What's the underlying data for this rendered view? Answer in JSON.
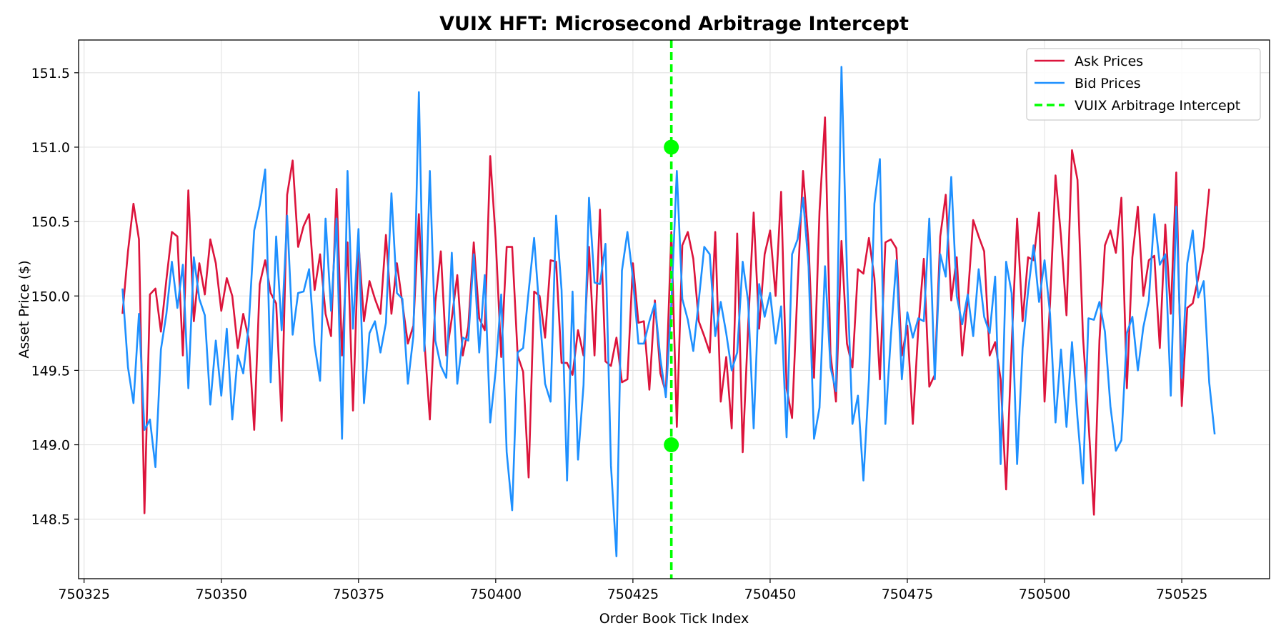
{
  "chart_data": {
    "type": "line",
    "title": "VUIX HFT: Microsecond Arbitrage Intercept",
    "xlabel": "Order Book Tick Index",
    "ylabel": "Asset Price ($)",
    "xlim": [
      750324,
      750541
    ],
    "ylim": [
      148.1,
      151.72
    ],
    "xticks": [
      750325,
      750350,
      750375,
      750400,
      750425,
      750450,
      750475,
      750500,
      750525
    ],
    "yticks": [
      148.5,
      149.0,
      149.5,
      150.0,
      150.5,
      151.0,
      151.5
    ],
    "ytick_labels": [
      "148.5",
      "149.0",
      "149.5",
      "150.0",
      "150.5",
      "151.0",
      "151.5"
    ],
    "grid": true,
    "legend_position": "top-right",
    "x_start": 750332,
    "x_end": 750531,
    "series": [
      {
        "name": "Ask Prices",
        "color": "#dc143c",
        "values": [
          149.88,
          150.3,
          150.62,
          150.38,
          148.54,
          150.01,
          150.05,
          149.76,
          150.11,
          150.43,
          150.4,
          149.6,
          150.71,
          149.83,
          150.22,
          150.01,
          150.38,
          150.22,
          149.9,
          150.12,
          150.0,
          149.65,
          149.88,
          149.71,
          149.1,
          150.08,
          150.24,
          150.02,
          149.95,
          149.16,
          150.68,
          150.91,
          150.33,
          150.47,
          150.55,
          150.04,
          150.28,
          149.88,
          149.73,
          150.72,
          149.6,
          150.36,
          149.23,
          150.36,
          149.83,
          150.1,
          149.98,
          149.88,
          150.41,
          149.88,
          150.22,
          149.95,
          149.68,
          149.8,
          150.55,
          149.7,
          149.17,
          149.96,
          150.3,
          149.6,
          149.85,
          150.14,
          149.6,
          149.79,
          150.36,
          149.85,
          149.77,
          150.94,
          150.38,
          149.59,
          150.33,
          150.33,
          149.6,
          149.49,
          148.78,
          150.03,
          150.0,
          149.72,
          150.24,
          150.23,
          149.55,
          149.55,
          149.47,
          149.77,
          149.6,
          150.33,
          149.6,
          150.58,
          149.56,
          149.53,
          149.72,
          149.42,
          149.44,
          150.22,
          149.82,
          149.83,
          149.37,
          149.97,
          149.48,
          149.35,
          150.43,
          149.12,
          150.34,
          150.43,
          150.25,
          149.83,
          149.73,
          149.62,
          150.43,
          149.29,
          149.59,
          149.11,
          150.42,
          148.95,
          149.8,
          150.56,
          149.78,
          150.28,
          150.44,
          150.0,
          150.7,
          149.38,
          149.18,
          150.06,
          150.84,
          150.35,
          149.45,
          150.57,
          151.2,
          149.61,
          149.29,
          150.37,
          149.68,
          149.52,
          150.18,
          150.15,
          150.39,
          150.12,
          149.44,
          150.36,
          150.38,
          150.32,
          149.6,
          149.8,
          149.14,
          149.78,
          150.25,
          149.39,
          149.47,
          150.4,
          150.68,
          149.97,
          150.26,
          149.6,
          149.98,
          150.51,
          150.4,
          150.3,
          149.6,
          149.69,
          149.44,
          148.7,
          149.66,
          150.52,
          149.83,
          150.26,
          150.24,
          150.56,
          149.29,
          149.95,
          150.81,
          150.4,
          149.87,
          150.98,
          150.78,
          149.73,
          149.16,
          148.53,
          149.7,
          150.34,
          150.44,
          150.29,
          150.66,
          149.38,
          150.26,
          150.6,
          150.0,
          150.24,
          150.27,
          149.65,
          150.48,
          149.88,
          150.83,
          149.26,
          149.92,
          149.95,
          150.12,
          150.33,
          150.72
        ]
      },
      {
        "name": "Bid Prices",
        "color": "#1e90ff",
        "values": [
          150.05,
          149.52,
          149.28,
          149.88,
          149.1,
          149.17,
          148.85,
          149.64,
          149.88,
          150.23,
          149.92,
          150.21,
          149.38,
          150.26,
          149.98,
          149.87,
          149.27,
          149.7,
          149.33,
          149.78,
          149.17,
          149.6,
          149.48,
          149.8,
          150.44,
          150.61,
          150.85,
          149.42,
          150.4,
          149.77,
          150.54,
          149.74,
          150.02,
          150.03,
          150.18,
          149.67,
          149.43,
          150.52,
          149.9,
          150.52,
          149.04,
          150.84,
          149.78,
          150.45,
          149.28,
          149.75,
          149.83,
          149.62,
          149.82,
          150.69,
          150.02,
          149.98,
          149.41,
          149.73,
          151.37,
          149.63,
          150.84,
          149.7,
          149.53,
          149.45,
          150.29,
          149.41,
          149.72,
          149.7,
          150.28,
          149.62,
          150.14,
          149.15,
          149.5,
          150.01,
          148.95,
          148.56,
          149.62,
          149.65,
          150.03,
          150.39,
          149.88,
          149.41,
          149.29,
          150.54,
          150.04,
          148.76,
          150.03,
          148.9,
          149.4,
          150.66,
          150.09,
          150.08,
          150.35,
          148.86,
          148.25,
          150.17,
          150.43,
          150.12,
          149.68,
          149.68,
          149.83,
          149.95,
          149.58,
          149.32,
          149.95,
          150.84,
          149.98,
          149.84,
          149.63,
          149.97,
          150.33,
          150.28,
          149.73,
          149.96,
          149.75,
          149.5,
          149.62,
          150.23,
          149.96,
          149.11,
          150.08,
          149.86,
          150.02,
          149.68,
          149.93,
          149.05,
          150.28,
          150.38,
          150.66,
          150.2,
          149.04,
          149.25,
          150.2,
          149.52,
          149.36,
          151.54,
          150.17,
          149.14,
          149.33,
          148.76,
          149.44,
          150.62,
          150.92,
          149.14,
          149.73,
          150.24,
          149.44,
          149.89,
          149.72,
          149.85,
          149.83,
          150.52,
          149.44,
          150.28,
          150.13,
          150.8,
          150.0,
          149.81,
          150.01,
          149.73,
          150.18,
          149.86,
          149.75,
          150.13,
          148.87,
          150.23,
          150.02,
          148.87,
          149.65,
          150.03,
          150.34,
          149.96,
          150.24,
          149.88,
          149.15,
          149.64,
          149.12,
          149.69,
          149.18,
          148.74,
          149.85,
          149.84,
          149.96,
          149.76,
          149.26,
          148.96,
          149.03,
          149.75,
          149.86,
          149.5,
          149.79,
          149.97,
          150.55,
          150.21,
          150.28,
          149.33,
          150.6,
          149.45,
          150.22,
          150.44,
          149.99,
          150.1,
          149.42,
          149.07
        ]
      }
    ],
    "intercept": {
      "name": "VUIX Arbitrage Intercept",
      "color": "#00ff00",
      "x": 750432,
      "markers": [
        151.0,
        149.0
      ]
    }
  }
}
